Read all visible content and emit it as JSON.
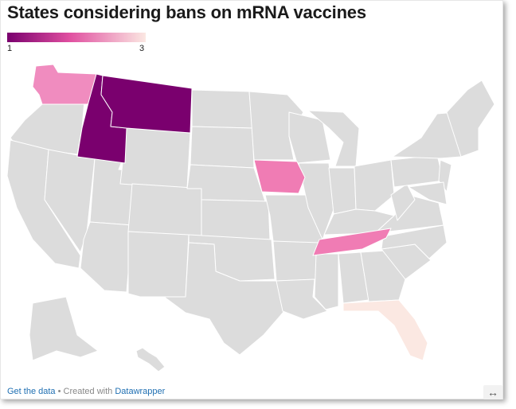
{
  "title": "States considering bans on mRNA vaccines",
  "legend": {
    "min_label": "1",
    "max_label": "3",
    "colors": [
      "#7a006e",
      "#e04fa0",
      "#fbe8e2"
    ]
  },
  "colors": {
    "no_data": "#dcdcdc",
    "link": "#1f6fb2"
  },
  "highlighted_states": [
    {
      "state": "Washington",
      "value": 2,
      "color": "#f08cbf"
    },
    {
      "state": "Idaho",
      "value": 1,
      "color": "#7a006e"
    },
    {
      "state": "Montana",
      "value": 1,
      "color": "#7a006e"
    },
    {
      "state": "Iowa",
      "value": 2,
      "color": "#f07cb4"
    },
    {
      "state": "Tennessee",
      "value": 2,
      "color": "#f07cb4"
    },
    {
      "state": "Florida",
      "value": 3,
      "color": "#fbe8e2"
    }
  ],
  "footer": {
    "get_data": "Get the data",
    "separator": " • Created with ",
    "created_with": "Datawrapper"
  },
  "expand_icon": "↔"
}
